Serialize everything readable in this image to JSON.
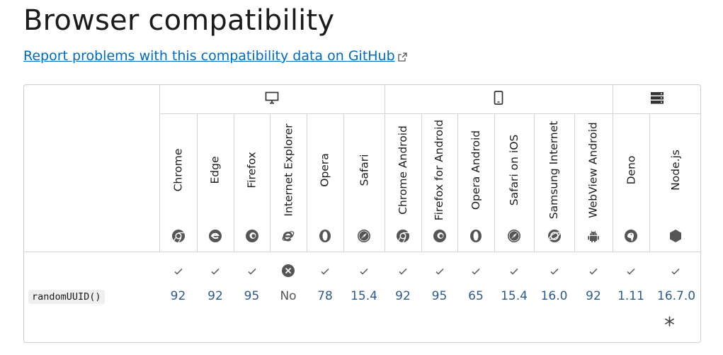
{
  "title": "Browser compatibility",
  "report_link": "Report problems with this compatibility data on GitHub",
  "platforms": [
    {
      "name": "desktop",
      "icon": "desktop-icon"
    },
    {
      "name": "mobile",
      "icon": "mobile-icon"
    },
    {
      "name": "server",
      "icon": "server-icon"
    }
  ],
  "browsers": [
    {
      "name": "Chrome",
      "icon": "chrome-icon"
    },
    {
      "name": "Edge",
      "icon": "edge-icon"
    },
    {
      "name": "Firefox",
      "icon": "firefox-icon"
    },
    {
      "name": "Internet Explorer",
      "icon": "internet-explorer-icon"
    },
    {
      "name": "Opera",
      "icon": "opera-icon"
    },
    {
      "name": "Safari",
      "icon": "safari-icon"
    },
    {
      "name": "Chrome Android",
      "icon": "chrome-icon"
    },
    {
      "name": "Firefox for Android",
      "icon": "firefox-icon"
    },
    {
      "name": "Opera Android",
      "icon": "opera-icon"
    },
    {
      "name": "Safari on iOS",
      "icon": "safari-icon"
    },
    {
      "name": "Samsung Internet",
      "icon": "samsung-internet-icon"
    },
    {
      "name": "WebView Android",
      "icon": "android-icon"
    },
    {
      "name": "Deno",
      "icon": "deno-icon"
    },
    {
      "name": "Node.js",
      "icon": "nodejs-icon"
    }
  ],
  "feature": {
    "name": "randomUUID()",
    "support": [
      {
        "version": "92",
        "supported": true
      },
      {
        "version": "92",
        "supported": true
      },
      {
        "version": "95",
        "supported": true
      },
      {
        "version": "No",
        "supported": false
      },
      {
        "version": "78",
        "supported": true
      },
      {
        "version": "15.4",
        "supported": true
      },
      {
        "version": "92",
        "supported": true
      },
      {
        "version": "95",
        "supported": true
      },
      {
        "version": "65",
        "supported": true
      },
      {
        "version": "15.4",
        "supported": true
      },
      {
        "version": "16.0",
        "supported": true
      },
      {
        "version": "92",
        "supported": true
      },
      {
        "version": "1.11",
        "supported": true
      },
      {
        "version": "16.7.0",
        "supported": true,
        "note": "*"
      }
    ]
  },
  "colors": {
    "link": "#0069c2",
    "version": "#2e5a8a",
    "border": "#d4d4d4"
  }
}
